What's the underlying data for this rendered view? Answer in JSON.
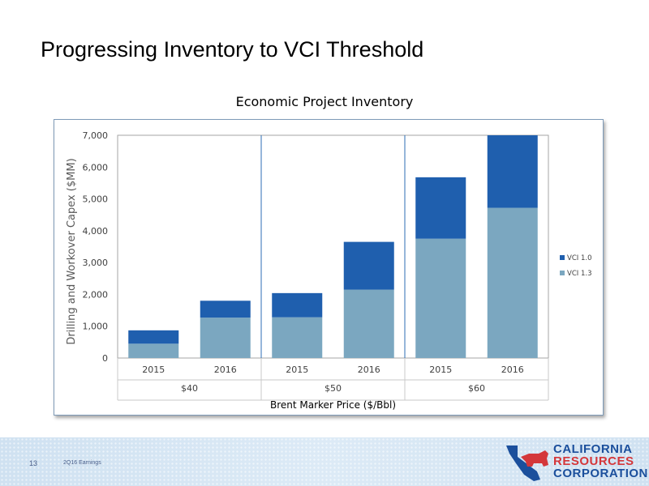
{
  "slide": {
    "title": "Progressing Inventory to VCI Threshold",
    "page_number": "13",
    "footer_label": "2Q16 Earnings"
  },
  "logo": {
    "line1": "CALIFORNIA",
    "line2": "RESOURCES",
    "line3": "CORPORATION"
  },
  "chart_data": {
    "type": "bar",
    "stacked": true,
    "title": "Economic Project Inventory",
    "xlabel": "Brent Marker Price ($/Bbl)",
    "ylabel": "Drilling and Workover Capex ($MM)",
    "ylim": [
      0,
      7000
    ],
    "yticks": [
      0,
      1000,
      2000,
      3000,
      4000,
      5000,
      6000,
      7000
    ],
    "ytick_labels": [
      "0",
      "1,000",
      "2,000",
      "3,000",
      "4,000",
      "5,000",
      "6,000",
      "7,000"
    ],
    "categories": [
      "2015",
      "2016",
      "2015",
      "2016",
      "2015",
      "2016"
    ],
    "groups": [
      {
        "label": "$40",
        "span": 2
      },
      {
        "label": "$50",
        "span": 2
      },
      {
        "label": "$60",
        "span": 2
      }
    ],
    "series": [
      {
        "name": "VCI 1.3",
        "color": "#7ba7c0",
        "values": [
          450,
          1270,
          1280,
          2150,
          3750,
          4720
        ]
      },
      {
        "name": "VCI 1.0",
        "color": "#1f5fae",
        "values": [
          420,
          530,
          760,
          1500,
          1930,
          2280
        ]
      }
    ],
    "legend_order": [
      1,
      0
    ],
    "legend": "right",
    "grid": false
  }
}
